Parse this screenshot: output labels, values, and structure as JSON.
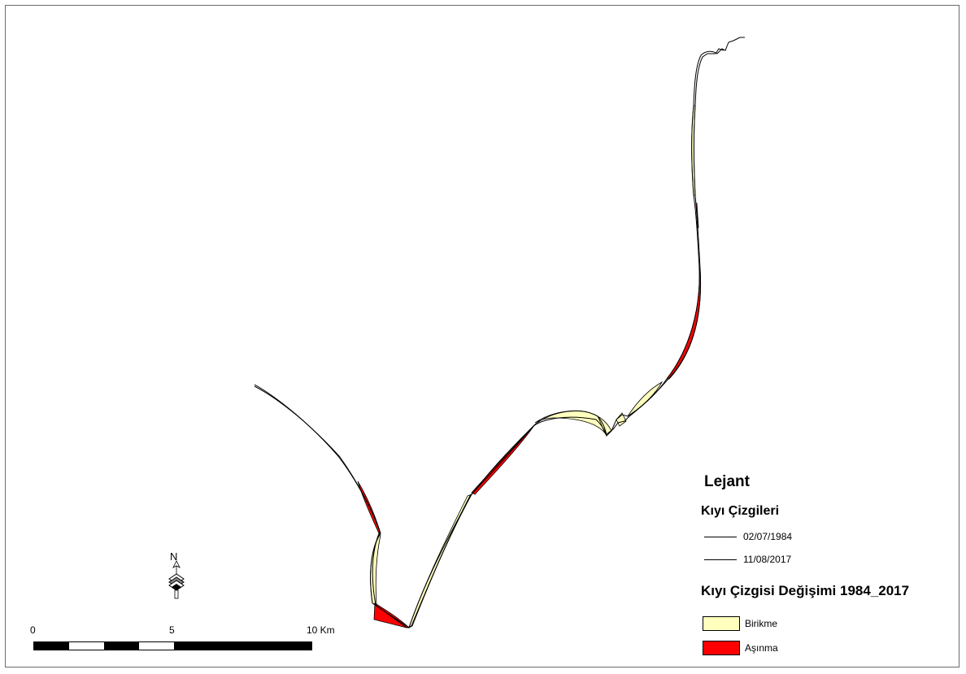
{
  "colors": {
    "accretion": "#ffffbe",
    "erosion": "#ff0000",
    "line": "#000000",
    "frame": "#6b6b6b"
  },
  "legend": {
    "title": "Lejant",
    "shoreline_heading": "Kıyı Çizgileri",
    "shorelines": [
      {
        "label": "02/07/1984"
      },
      {
        "label": "11/08/2017"
      }
    ],
    "change_heading": "Kıyı Çizgisi Değişimi 1984_2017",
    "change_classes": [
      {
        "label": "Birikme",
        "color": "#ffffbe"
      },
      {
        "label": "Aşınma",
        "color": "#ff0000"
      }
    ]
  },
  "scale_bar": {
    "labels": [
      "0",
      "5",
      "10 Km"
    ],
    "segments": [
      "black",
      "white",
      "black",
      "white",
      "black"
    ]
  },
  "north_arrow": {
    "letter": "N",
    "icon": "north-arrow-icon"
  }
}
